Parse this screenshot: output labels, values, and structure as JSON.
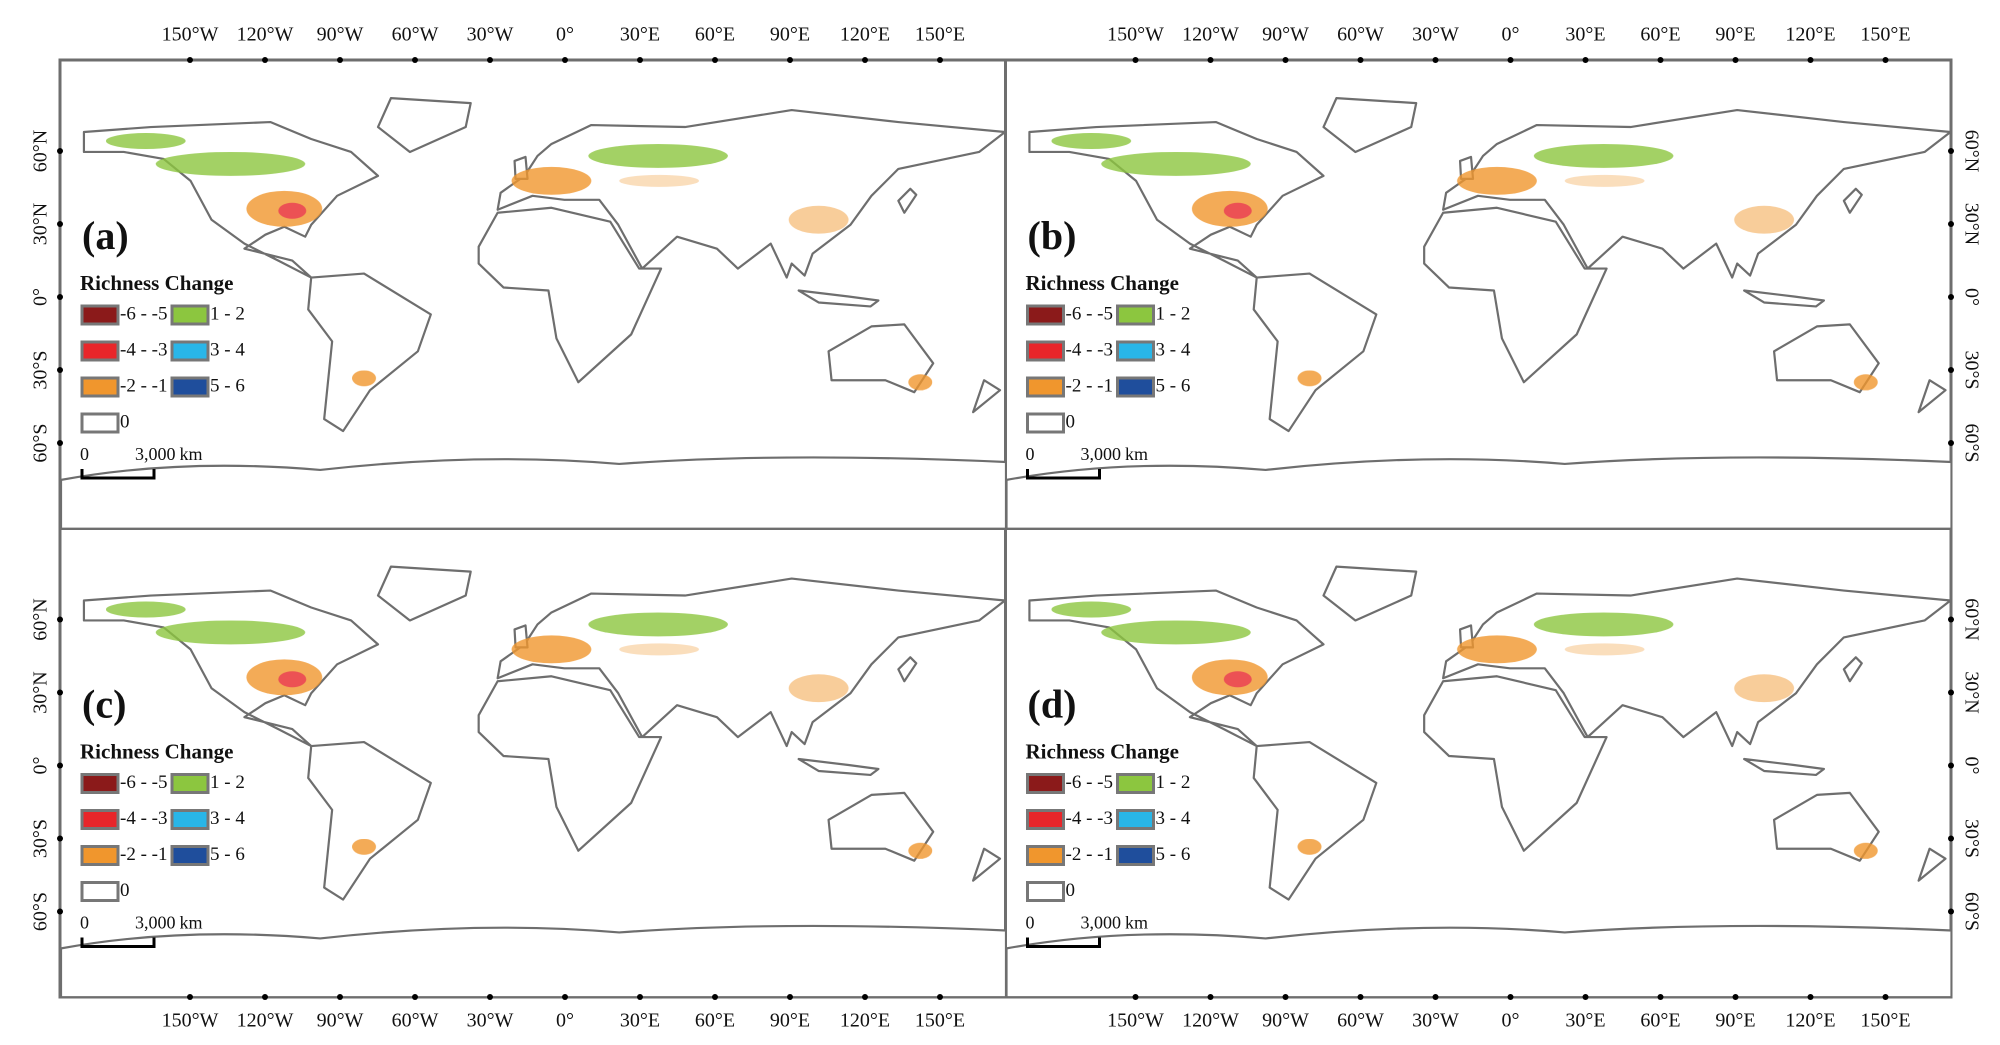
{
  "longitude_labels": [
    "150°W",
    "120°W",
    "90°W",
    "60°W",
    "30°W",
    "0°",
    "30°E",
    "60°E",
    "90°E",
    "120°E",
    "150°E"
  ],
  "latitude_labels": [
    "60°N",
    "30°N",
    "0°",
    "30°S",
    "60°S"
  ],
  "panels": [
    "(a)",
    "(b)",
    "(c)",
    "(d)"
  ],
  "legend": {
    "title": "Richness Change",
    "items": [
      {
        "label": "-6 - -5",
        "color": "#8b1a1a"
      },
      {
        "label": "-4 - -3",
        "color": "#e8262a"
      },
      {
        "label": "-2 - -1",
        "color": "#f0962d"
      },
      {
        "label": "0",
        "color": "#ffffff"
      },
      {
        "label": "1 - 2",
        "color": "#8cc63f"
      },
      {
        "label": "3 - 4",
        "color": "#29b6e8"
      },
      {
        "label": "5 - 6",
        "color": "#1f4e9c"
      }
    ],
    "scale_bar": {
      "start": "0",
      "end": "3,000",
      "unit": "km"
    }
  }
}
